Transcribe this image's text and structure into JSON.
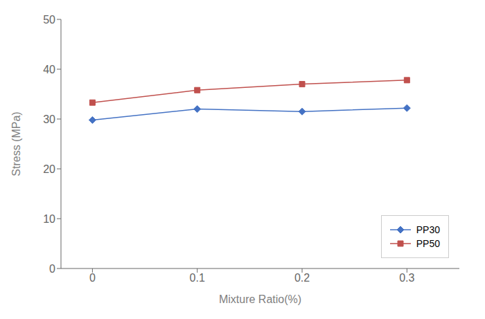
{
  "chart_data": {
    "type": "line",
    "x": [
      0,
      0.1,
      0.2,
      0.3
    ],
    "series": [
      {
        "name": "PP30",
        "color": "#4472C4",
        "marker": "diamond",
        "values": [
          29.8,
          32.0,
          31.5,
          32.2
        ]
      },
      {
        "name": "PP50",
        "color": "#C0504D",
        "marker": "square",
        "values": [
          33.3,
          35.8,
          37.0,
          37.8
        ]
      }
    ],
    "xlabel": "Mixture Ratio(%)",
    "ylabel": "Stress (MPa)",
    "xlim": [
      -0.03,
      0.35
    ],
    "ylim": [
      0,
      50
    ],
    "xticks": [
      0,
      0.1,
      0.2,
      0.3
    ],
    "yticks": [
      0,
      10,
      20,
      30,
      40,
      50
    ],
    "legend": "lower right",
    "grid": false
  }
}
